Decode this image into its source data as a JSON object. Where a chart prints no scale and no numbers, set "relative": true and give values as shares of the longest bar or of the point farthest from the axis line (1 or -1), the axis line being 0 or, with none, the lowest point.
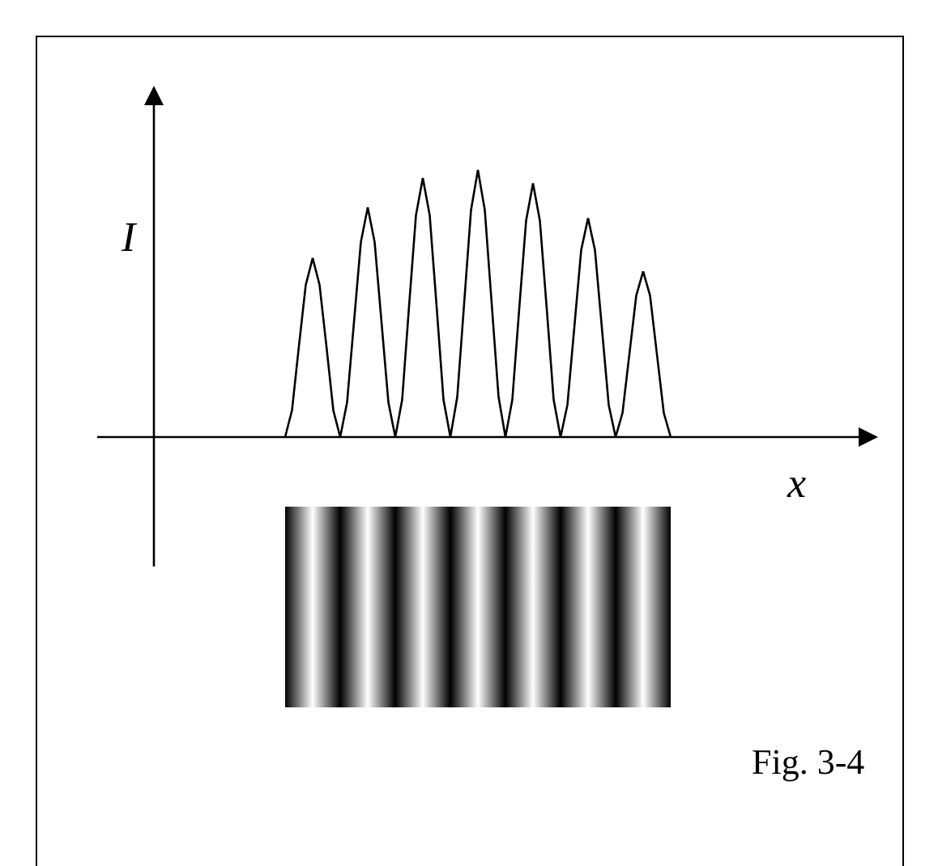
{
  "chart_data": {
    "type": "line",
    "xlabel": "x",
    "ylabel": "I",
    "annotations": [
      "Fig. 3-4"
    ],
    "categories": [
      null,
      null,
      null,
      null,
      null,
      null,
      null,
      null,
      null,
      null,
      null,
      null,
      null,
      null,
      null,
      null,
      null,
      null,
      null,
      null,
      null,
      null,
      null,
      null,
      null,
      null,
      null,
      null,
      null,
      null,
      null,
      null,
      null,
      null,
      null,
      null,
      null,
      null,
      null,
      null,
      null,
      null,
      null,
      null,
      null,
      null,
      null,
      null,
      null,
      null,
      null,
      null,
      null,
      null,
      null,
      null,
      null
    ],
    "values": [
      0,
      0.1,
      0.34,
      0.57,
      0.67,
      0.57,
      0.34,
      0.1,
      0,
      0.13,
      0.43,
      0.73,
      0.86,
      0.73,
      0.43,
      0.13,
      0,
      0.14,
      0.49,
      0.83,
      0.97,
      0.83,
      0.49,
      0.14,
      0,
      0.15,
      0.5,
      0.85,
      1,
      0.85,
      0.5,
      0.15,
      0,
      0.14,
      0.48,
      0.81,
      0.95,
      0.81,
      0.48,
      0.14,
      0,
      0.12,
      0.41,
      0.7,
      0.82,
      0.7,
      0.41,
      0.12,
      0,
      0.09,
      0.31,
      0.53,
      0.62,
      0.53,
      0.31,
      0.09,
      0
    ],
    "color": "#000000",
    "relative": true,
    "marker": "none",
    "line_style": "solid"
  }
}
